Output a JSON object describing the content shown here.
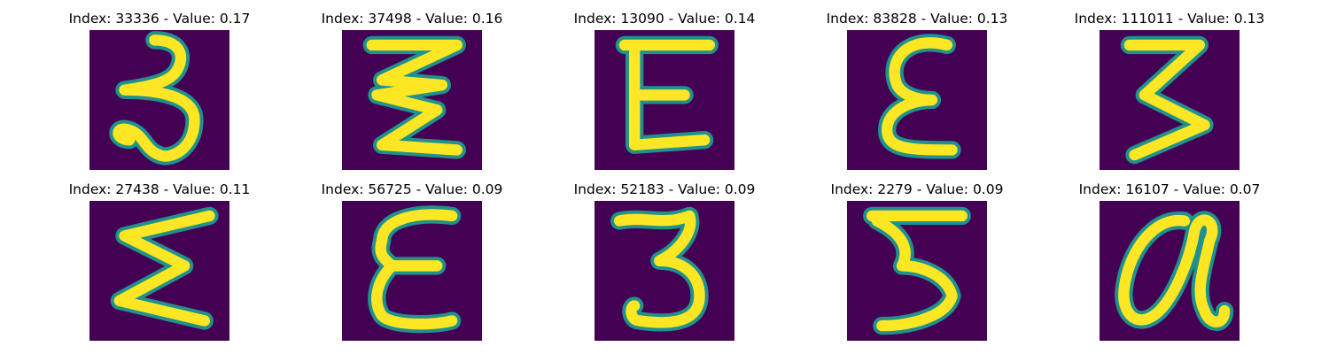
{
  "colors": {
    "background": "#440154",
    "stroke_outer": "#21918c",
    "stroke_mid": "#5ec962",
    "stroke_core": "#fde725"
  },
  "panels": [
    {
      "index": "33336",
      "value": "0.17",
      "title": "Index: 33336 - Value: 0.17",
      "glyph": "handwritten 3"
    },
    {
      "index": "37498",
      "value": "0.16",
      "title": "Index: 37498 - Value: 0.16",
      "glyph": "zigzag 3"
    },
    {
      "index": "13090",
      "value": "0.14",
      "title": "Index: 13090 - Value: 0.14",
      "glyph": "E"
    },
    {
      "index": "83828",
      "value": "0.13",
      "title": "Index: 83828 - Value: 0.13",
      "glyph": "rounded E"
    },
    {
      "index": "111011",
      "value": "0.13",
      "title": "Index: 111011 - Value: 0.13",
      "glyph": "angular 3"
    },
    {
      "index": "27438",
      "value": "0.11",
      "title": "Index: 27438 - Value: 0.11",
      "glyph": "sigma-like E"
    },
    {
      "index": "56725",
      "value": "0.09",
      "title": "Index: 56725 - Value: 0.09",
      "glyph": "bold E"
    },
    {
      "index": "52183",
      "value": "0.09",
      "title": "Index: 52183 - Value: 0.09",
      "glyph": "handwritten 3"
    },
    {
      "index": "2279",
      "value": "0.09",
      "title": "Index: 2279 - Value: 0.09",
      "glyph": "angular 3"
    },
    {
      "index": "16107",
      "value": "0.07",
      "title": "Index: 16107 - Value: 0.07",
      "glyph": "looped a"
    }
  ]
}
